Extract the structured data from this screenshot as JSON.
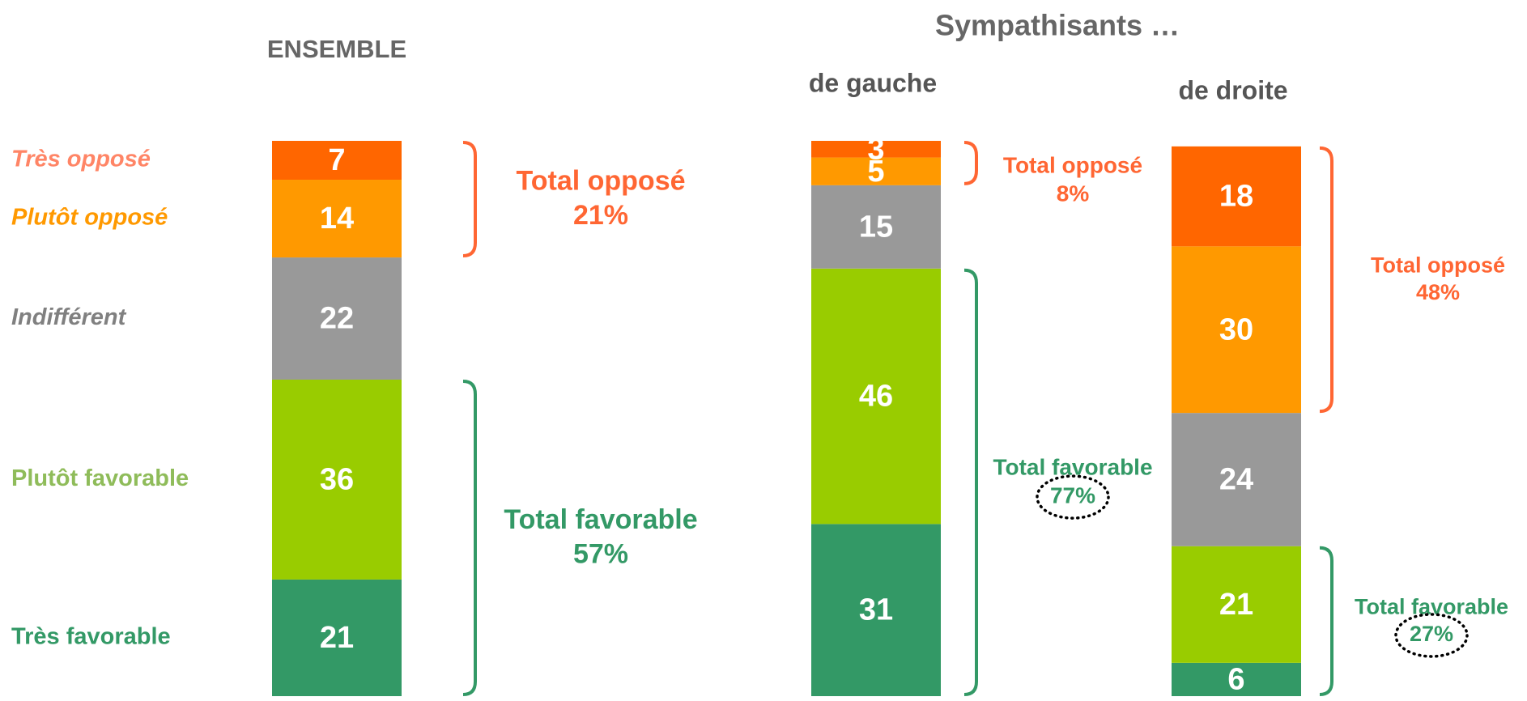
{
  "chart_data": {
    "type": "stacked_bar",
    "group_title": "Sympathisants …",
    "categories": [
      "ENSEMBLE",
      "de gauche",
      "de droite"
    ],
    "ylim": [
      0,
      100
    ],
    "series": [
      {
        "name": "Très favorable",
        "color": "#339966",
        "label_color": "#339966",
        "values": [
          21,
          31,
          6
        ]
      },
      {
        "name": "Plutôt favorable",
        "color": "#99cc00",
        "label_color": "#8fbc5a",
        "values": [
          36,
          46,
          21
        ]
      },
      {
        "name": "Indifférent",
        "color": "#999999",
        "label_color": "#808080",
        "values": [
          22,
          15,
          24
        ]
      },
      {
        "name": "Plutôt opposé",
        "color": "#ff9900",
        "label_color": "#ff9900",
        "values": [
          14,
          5,
          30
        ]
      },
      {
        "name": "Très opposé",
        "color": "#ff6600",
        "label_color": "#ff8566",
        "values": [
          7,
          3,
          18
        ]
      }
    ],
    "annotations": [
      [
        {
          "label": "Total favorable",
          "value_label": "57%",
          "color": "#339966"
        },
        {
          "label": "Total opposé",
          "value_label": "21%",
          "color": "#ff6633"
        }
      ],
      [
        {
          "label": "Total favorable",
          "value_label": "77%",
          "color": "#339966"
        },
        {
          "label": "Total opposé",
          "value_label": "8%",
          "color": "#ff6633"
        }
      ],
      [
        {
          "label": "Total favorable",
          "value_label": "27%",
          "color": "#339966"
        },
        {
          "label": "Total opposé",
          "value_label": "48%",
          "color": "#ff6633"
        }
      ]
    ]
  }
}
